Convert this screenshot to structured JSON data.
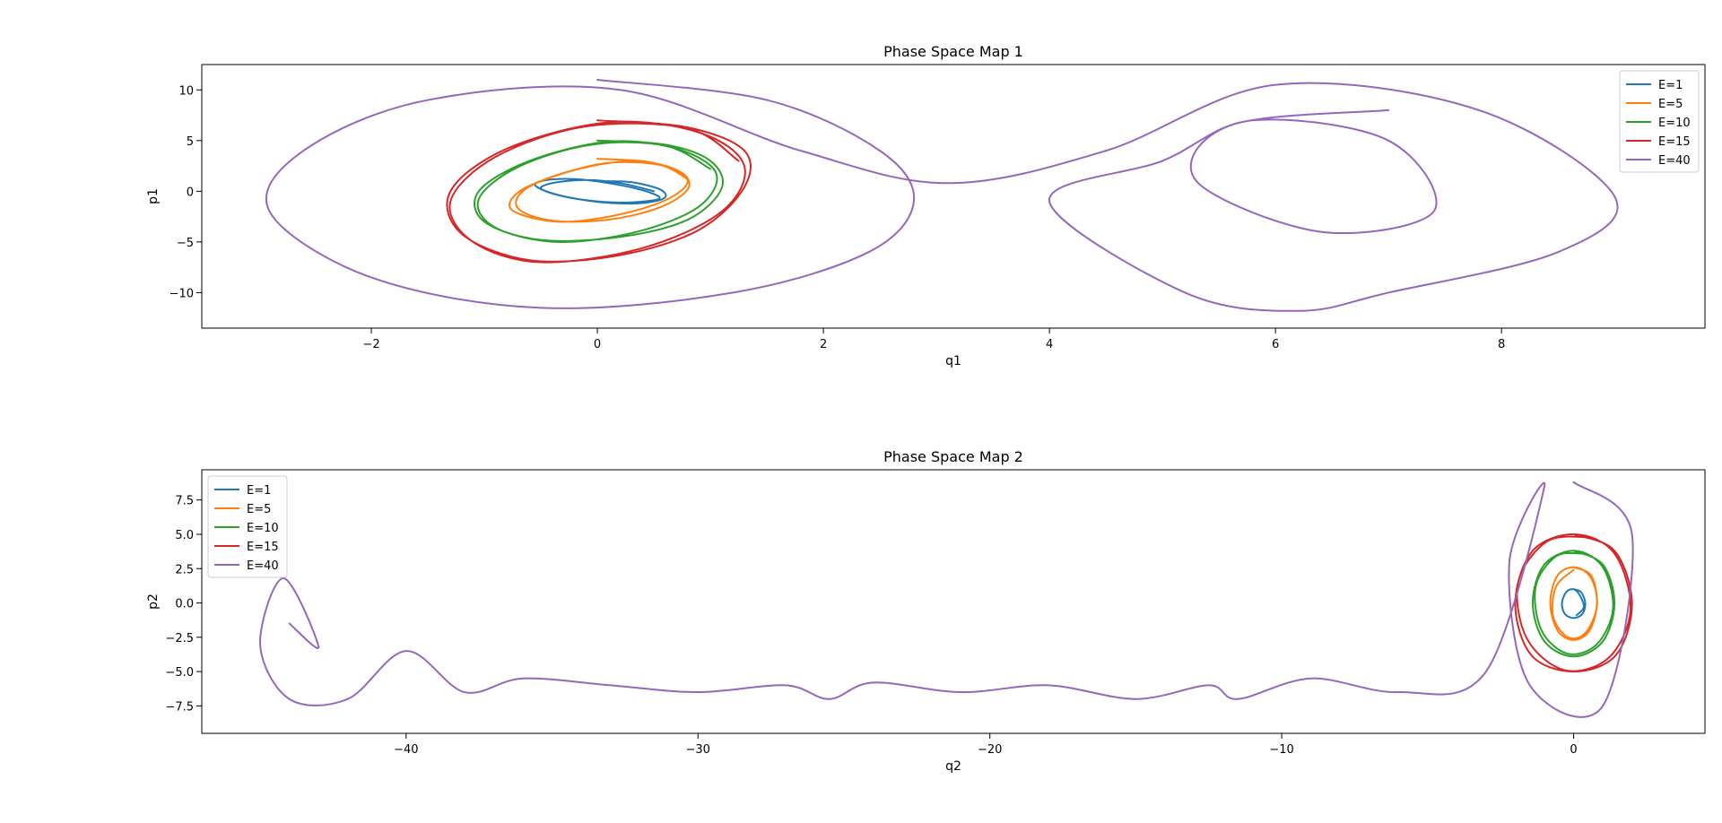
{
  "chart_data": [
    {
      "type": "line",
      "title": "Phase Space Map 1",
      "xlabel": "q1",
      "ylabel": "p1",
      "xlim": [
        -3.5,
        9.8
      ],
      "ylim": [
        -13.5,
        12.5
      ],
      "xticks": [
        -2,
        0,
        2,
        4,
        6,
        8
      ],
      "xtick_labels": [
        "−2",
        "0",
        "2",
        "4",
        "6",
        "8"
      ],
      "yticks": [
        -10,
        -5,
        0,
        5,
        10
      ],
      "ytick_labels": [
        "−10",
        "−5",
        "0",
        "5",
        "10"
      ],
      "grid": false,
      "legend": "upper right",
      "series": [
        {
          "name": "E=1",
          "color": "#1f77b4",
          "x": [
            0.02,
            0.3,
            0.55,
            0.6,
            0.45,
            0.2,
            -0.1,
            -0.4,
            -0.55,
            -0.45,
            -0.2,
            0.1,
            0.4,
            0.55,
            0.3,
            0.0,
            -0.3,
            -0.5,
            -0.35,
            -0.05,
            0.25,
            0.5
          ],
          "y": [
            1.0,
            0.9,
            0.2,
            -0.6,
            -1.1,
            -1.2,
            -0.9,
            -0.2,
            0.6,
            1.1,
            1.2,
            0.8,
            0.1,
            -0.7,
            -1.1,
            -1.0,
            -0.5,
            0.3,
            0.9,
            1.1,
            0.7,
            0.0
          ]
        },
        {
          "name": "E=5",
          "color": "#ff7f0e",
          "x": [
            0.0,
            0.45,
            0.75,
            0.8,
            0.55,
            0.1,
            -0.4,
            -0.7,
            -0.65,
            -0.3,
            0.2,
            0.6,
            0.8,
            0.6,
            0.15,
            -0.35,
            -0.75,
            -0.7,
            -0.35,
            0.1,
            0.55,
            0.8
          ],
          "y": [
            3.2,
            2.9,
            1.8,
            0.2,
            -1.6,
            -2.8,
            -2.9,
            -1.7,
            0.1,
            1.8,
            2.9,
            2.5,
            1.0,
            -0.9,
            -2.4,
            -3.0,
            -1.9,
            -0.1,
            1.6,
            2.8,
            2.6,
            1.2
          ]
        },
        {
          "name": "E=10",
          "color": "#2ca02c",
          "x": [
            0.0,
            0.6,
            1.0,
            1.1,
            0.8,
            0.2,
            -0.5,
            -1.0,
            -1.05,
            -0.6,
            0.1,
            0.7,
            1.05,
            0.9,
            0.35,
            -0.35,
            -0.9,
            -1.05,
            -0.7,
            -0.05,
            0.6,
            1.0
          ],
          "y": [
            5.0,
            4.6,
            3.0,
            0.3,
            -2.8,
            -4.5,
            -4.8,
            -3.0,
            0.0,
            3.0,
            4.9,
            4.2,
            1.8,
            -1.5,
            -4.0,
            -5.0,
            -3.6,
            -0.8,
            2.4,
            4.6,
            4.5,
            2.2
          ]
        },
        {
          "name": "E=15",
          "color": "#d62728",
          "x": [
            0.0,
            0.8,
            1.3,
            1.3,
            0.9,
            0.2,
            -0.6,
            -1.2,
            -1.3,
            -0.8,
            0.1,
            0.9,
            1.3,
            1.1,
            0.4,
            -0.5,
            -1.1,
            -1.3,
            -0.9,
            -0.1,
            0.8,
            1.25
          ],
          "y": [
            7.0,
            6.3,
            4.0,
            0.4,
            -3.8,
            -6.3,
            -6.8,
            -4.2,
            0.0,
            4.2,
            6.8,
            5.8,
            2.5,
            -2.0,
            -5.6,
            -7.0,
            -5.0,
            -1.0,
            3.4,
            6.4,
            6.2,
            3.0
          ]
        },
        {
          "name": "E=40",
          "color": "#9467bd",
          "x": [
            0.0,
            1.5,
            2.5,
            2.8,
            2.4,
            1.2,
            -0.5,
            -2.0,
            -2.9,
            -2.6,
            -1.5,
            0.2,
            1.8,
            3.1,
            4.5,
            6.0,
            7.8,
            9.0,
            8.5,
            7.0,
            6.2,
            5.2,
            4.0,
            5.0,
            5.8,
            7.0,
            7.4,
            6.4,
            5.3,
            5.6,
            7.0
          ],
          "y": [
            11.0,
            9.0,
            4.0,
            -1.0,
            -6.0,
            -10.0,
            -11.5,
            -8.5,
            -2.0,
            4.0,
            9.0,
            10.0,
            4.0,
            0.8,
            4.0,
            10.5,
            8.0,
            -0.5,
            -6.0,
            -10.0,
            -11.8,
            -10.0,
            -1.0,
            3.0,
            7.0,
            5.0,
            -2.0,
            -4.0,
            1.0,
            6.5,
            8.0
          ]
        }
      ]
    },
    {
      "type": "line",
      "title": "Phase Space Map 2",
      "xlabel": "q2",
      "ylabel": "p2",
      "xlim": [
        -47,
        4.5
      ],
      "ylim": [
        -9.5,
        9.7
      ],
      "xticks": [
        -40,
        -30,
        -20,
        -10,
        0
      ],
      "xtick_labels": [
        "−40",
        "−30",
        "−20",
        "−10",
        "0"
      ],
      "yticks": [
        -7.5,
        -5.0,
        -2.5,
        0.0,
        2.5,
        5.0,
        7.5
      ],
      "ytick_labels": [
        "−7.5",
        "−5.0",
        "−2.5",
        "0.0",
        "2.5",
        "5.0",
        "7.5"
      ],
      "grid": false,
      "legend": "upper left",
      "series": [
        {
          "name": "E=1",
          "color": "#1f77b4",
          "x": [
            0.0,
            0.25,
            0.4,
            0.3,
            0.0,
            -0.3,
            -0.4,
            -0.25,
            0.0,
            0.2,
            0.35,
            0.1
          ],
          "y": [
            1.0,
            0.8,
            0.0,
            -0.8,
            -1.1,
            -0.8,
            0.0,
            0.8,
            1.0,
            0.6,
            -0.3,
            -0.9
          ]
        },
        {
          "name": "E=5",
          "color": "#ff7f0e",
          "x": [
            0.0,
            0.6,
            0.8,
            0.55,
            0.0,
            -0.55,
            -0.8,
            -0.55,
            0.05,
            0.6,
            0.8,
            0.4,
            -0.2,
            -0.7,
            -0.6,
            0.0
          ],
          "y": [
            2.6,
            2.0,
            0.0,
            -2.0,
            -2.7,
            -2.0,
            0.0,
            2.0,
            2.6,
            1.8,
            -0.2,
            -2.2,
            -2.5,
            -1.0,
            1.2,
            2.4
          ]
        },
        {
          "name": "E=10",
          "color": "#2ca02c",
          "x": [
            0.0,
            1.0,
            1.4,
            1.0,
            0.0,
            -1.0,
            -1.4,
            -1.0,
            0.05,
            1.0,
            1.35,
            0.8,
            -0.2,
            -1.1,
            -1.3,
            -0.6,
            0.3
          ],
          "y": [
            3.8,
            2.8,
            0.0,
            -2.8,
            -3.9,
            -2.8,
            0.0,
            2.8,
            3.8,
            2.6,
            -0.4,
            -3.0,
            -3.7,
            -2.0,
            1.2,
            3.4,
            3.6
          ]
        },
        {
          "name": "E=15",
          "color": "#d62728",
          "x": [
            0.0,
            1.4,
            2.0,
            1.45,
            0.0,
            -1.45,
            -2.0,
            -1.4,
            0.05,
            1.4,
            1.95,
            1.2,
            -0.3,
            -1.6,
            -1.9,
            -0.9,
            0.5
          ],
          "y": [
            5.0,
            3.8,
            0.0,
            -3.8,
            -5.0,
            -3.8,
            0.0,
            3.8,
            5.0,
            3.6,
            -0.5,
            -4.0,
            -4.9,
            -2.6,
            1.5,
            4.5,
            4.8
          ]
        },
        {
          "name": "E=40",
          "color": "#9467bd",
          "x": [
            0.0,
            2.0,
            1.0,
            -1.5,
            -2.2,
            -1.0,
            -3.0,
            -6.0,
            -9.0,
            -11.5,
            -12.5,
            -15.0,
            -18.0,
            -21.0,
            -24.0,
            -25.5,
            -27.0,
            -30.0,
            -33.0,
            -36.0,
            -38.0,
            -40.0,
            -42.0,
            -44.0,
            -45.0,
            -44.2,
            -43.0,
            -44.0
          ],
          "y": [
            8.8,
            5.0,
            -7.5,
            -6.0,
            3.0,
            8.5,
            -5.0,
            -6.5,
            -5.5,
            -7.0,
            -6.0,
            -7.0,
            -6.0,
            -6.5,
            -5.8,
            -7.0,
            -6.0,
            -6.5,
            -6.0,
            -5.5,
            -6.5,
            -3.5,
            -7.0,
            -7.0,
            -3.0,
            1.8,
            -3.2,
            -1.5
          ]
        }
      ]
    }
  ]
}
